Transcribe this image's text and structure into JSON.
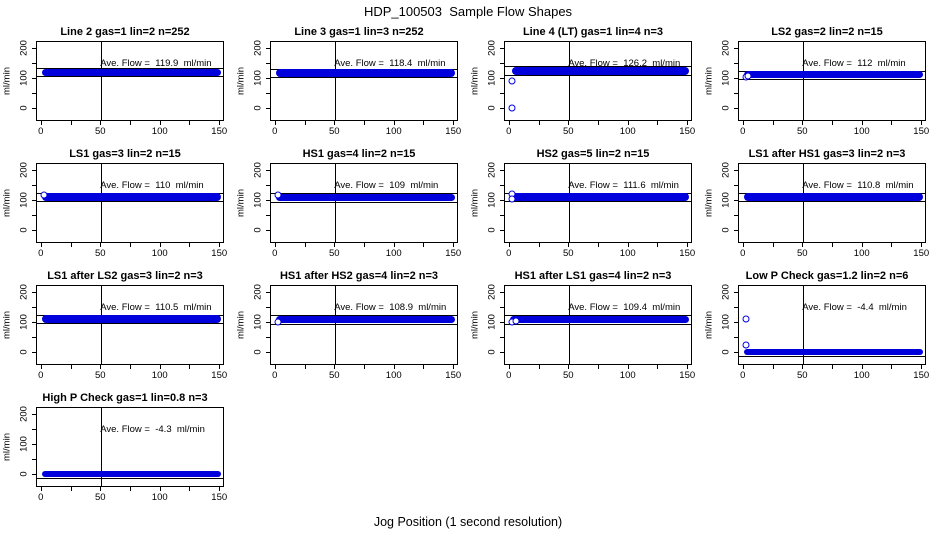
{
  "title": "HDP_100503  Sample Flow Shapes",
  "xlabel": "Jog Position (1 second resolution)",
  "colors": {
    "point": "#0000dd",
    "axis": "#000000",
    "background": "#ffffff"
  },
  "axes": {
    "ylabel": "ml/min",
    "x_tick_labels": [
      "0",
      "50",
      "100",
      "150"
    ],
    "y_tick_labels": [
      "0",
      "100",
      "200"
    ],
    "x_tick_values": [
      0,
      50,
      100,
      150
    ],
    "y_tick_values": [
      0,
      100,
      200
    ],
    "x_minor_step": 25,
    "y_minor_step": 50,
    "xlim": [
      -4,
      154
    ],
    "ylim": [
      -45,
      225
    ],
    "guide_line_x": 50
  },
  "chart_data": [
    {
      "type": "scatter",
      "title": "Line 2 gas=1 lin=2 n=252",
      "annotation": "Ave. Flow =  119.9  ml/min",
      "ave_flow": 119.9,
      "band": {
        "x0": 0,
        "x1": 152,
        "center": 120,
        "half": 13
      },
      "hlines": [
        134,
        106
      ],
      "outliers": []
    },
    {
      "type": "scatter",
      "title": "Line 3 gas=1 lin=3 n=252",
      "annotation": "Ave. Flow =  118.4  ml/min",
      "ave_flow": 118.4,
      "band": {
        "x0": 0,
        "x1": 152,
        "center": 118,
        "half": 13
      },
      "hlines": [
        132,
        104
      ],
      "outliers": []
    },
    {
      "type": "scatter",
      "title": "Line 4 (LT) gas=1 lin=4 n=3",
      "annotation": "Ave. Flow =  126.2  ml/min",
      "ave_flow": 126.2,
      "band": {
        "x0": 2,
        "x1": 152,
        "center": 126,
        "half": 14
      },
      "hlines": [
        141,
        112
      ],
      "outliers": [
        [
          2,
          -5
        ],
        [
          2,
          90
        ]
      ]
    },
    {
      "type": "scatter",
      "title": "LS2 gas=2 lin=2 n=15",
      "annotation": "Ave. Flow =  112  ml/min",
      "ave_flow": 112,
      "band": {
        "x0": 0,
        "x1": 152,
        "center": 112,
        "half": 13
      },
      "hlines": [
        126,
        98
      ],
      "outliers": [
        [
          2,
          104
        ],
        [
          4,
          108
        ]
      ]
    },
    {
      "type": "scatter",
      "title": "LS1 gas=3 lin=2 n=15",
      "annotation": "Ave. Flow =  110  ml/min",
      "ave_flow": 110,
      "band": {
        "x0": 0,
        "x1": 152,
        "center": 110,
        "half": 13
      },
      "hlines": [
        124,
        96
      ],
      "outliers": [
        [
          2,
          119
        ]
      ]
    },
    {
      "type": "scatter",
      "title": "HS1 gas=4 lin=2 n=15",
      "annotation": "Ave. Flow =  109  ml/min",
      "ave_flow": 109,
      "band": {
        "x0": 0,
        "x1": 152,
        "center": 109,
        "half": 13
      },
      "hlines": [
        123,
        95
      ],
      "outliers": [
        [
          2,
          118
        ]
      ]
    },
    {
      "type": "scatter",
      "title": "HS2 gas=5 lin=2 n=15",
      "annotation": "Ave. Flow =  111.6  ml/min",
      "ave_flow": 111.6,
      "band": {
        "x0": 0,
        "x1": 152,
        "center": 111,
        "half": 13
      },
      "hlines": [
        125,
        97
      ],
      "outliers": [
        [
          2,
          122
        ],
        [
          2,
          103
        ]
      ]
    },
    {
      "type": "scatter",
      "title": "LS1 after HS1 gas=3 lin=2 n=3",
      "annotation": "Ave. Flow =  110.8  ml/min",
      "ave_flow": 110.8,
      "band": {
        "x0": 0,
        "x1": 152,
        "center": 111,
        "half": 13
      },
      "hlines": [
        125,
        97
      ],
      "outliers": []
    },
    {
      "type": "scatter",
      "title": "LS1 after LS2 gas=3 lin=2 n=3",
      "annotation": "Ave. Flow =  110.5  ml/min",
      "ave_flow": 110.5,
      "band": {
        "x0": 0,
        "x1": 152,
        "center": 110,
        "half": 13
      },
      "hlines": [
        124,
        96
      ],
      "outliers": []
    },
    {
      "type": "scatter",
      "title": "HS1 after HS2 gas=4 lin=2 n=3",
      "annotation": "Ave. Flow =  108.9  ml/min",
      "ave_flow": 108.9,
      "band": {
        "x0": 0,
        "x1": 152,
        "center": 109,
        "half": 13
      },
      "hlines": [
        123,
        95
      ],
      "outliers": [
        [
          2,
          99
        ]
      ]
    },
    {
      "type": "scatter",
      "title": "HS1 after LS1 gas=4 lin=2 n=3",
      "annotation": "Ave. Flow =  109.4  ml/min",
      "ave_flow": 109.4,
      "band": {
        "x0": 0,
        "x1": 152,
        "center": 109,
        "half": 13
      },
      "hlines": [
        123,
        95
      ],
      "outliers": [
        [
          2,
          101
        ],
        [
          5,
          103
        ]
      ]
    },
    {
      "type": "scatter",
      "title": "Low P Check gas=1.2 lin=2 n=6",
      "annotation": "Ave. Flow =  -4.4  ml/min",
      "ave_flow": -4.4,
      "band": {
        "x0": 0,
        "x1": 152,
        "center": -4,
        "half": 11
      },
      "hlines": [
        -18
      ],
      "outliers": [
        [
          2,
          112
        ],
        [
          2,
          20
        ]
      ]
    },
    {
      "type": "scatter",
      "title": "High P Check gas=1 lin=0.8 n=3",
      "annotation": "Ave. Flow =  -4.3  ml/min",
      "ave_flow": -4.3,
      "band": {
        "x0": 0,
        "x1": 152,
        "center": -4,
        "half": 11
      },
      "hlines": [
        -18
      ],
      "outliers": []
    }
  ]
}
